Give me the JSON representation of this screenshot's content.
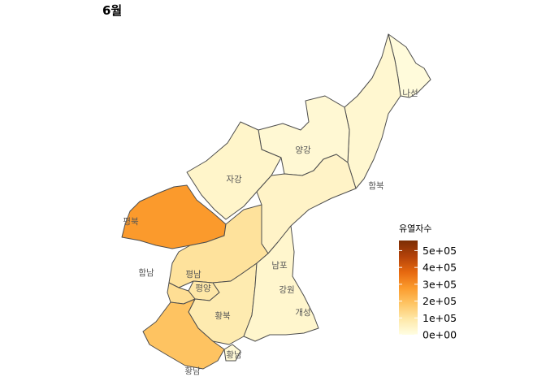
{
  "title": "6월",
  "legend": {
    "title": "유열자수",
    "min": 0,
    "max": 560000,
    "ticks": [
      {
        "value": 0,
        "label": "0e+00"
      },
      {
        "value": 100000,
        "label": "1e+05"
      },
      {
        "value": 200000,
        "label": "2e+05"
      },
      {
        "value": 300000,
        "label": "3e+05"
      },
      {
        "value": 400000,
        "label": "4e+05"
      },
      {
        "value": 500000,
        "label": "5e+05"
      }
    ],
    "colors": [
      "#fffee3",
      "#fee8a8",
      "#fec463",
      "#fb9a2c",
      "#e6680f",
      "#b3420a",
      "#7c2d04"
    ]
  },
  "regions": [
    {
      "id": "rason",
      "label": "나선",
      "value": 12000
    },
    {
      "id": "hambuk",
      "label": "함북",
      "value": 30000
    },
    {
      "id": "yanggang",
      "label": "양강",
      "value": 25000
    },
    {
      "id": "jagang",
      "label": "자강",
      "value": 40000
    },
    {
      "id": "hamnam",
      "label": "함남",
      "value": 45000
    },
    {
      "id": "pyongbuk",
      "label": "평북",
      "value": 280000
    },
    {
      "id": "pyongnam",
      "label": "평남",
      "value": 110000
    },
    {
      "id": "pyongyang",
      "label": "평양",
      "value": 95000
    },
    {
      "id": "hwangbuk",
      "label": "황북",
      "value": 80000
    },
    {
      "id": "hwangnam",
      "label": "황남",
      "value": 190000
    },
    {
      "id": "gangwon",
      "label": "강원",
      "value": 35000
    },
    {
      "id": "kaesong",
      "label": "개성",
      "value": 20000
    },
    {
      "id": "nampo",
      "label": "남포",
      "value": 120000
    }
  ]
}
